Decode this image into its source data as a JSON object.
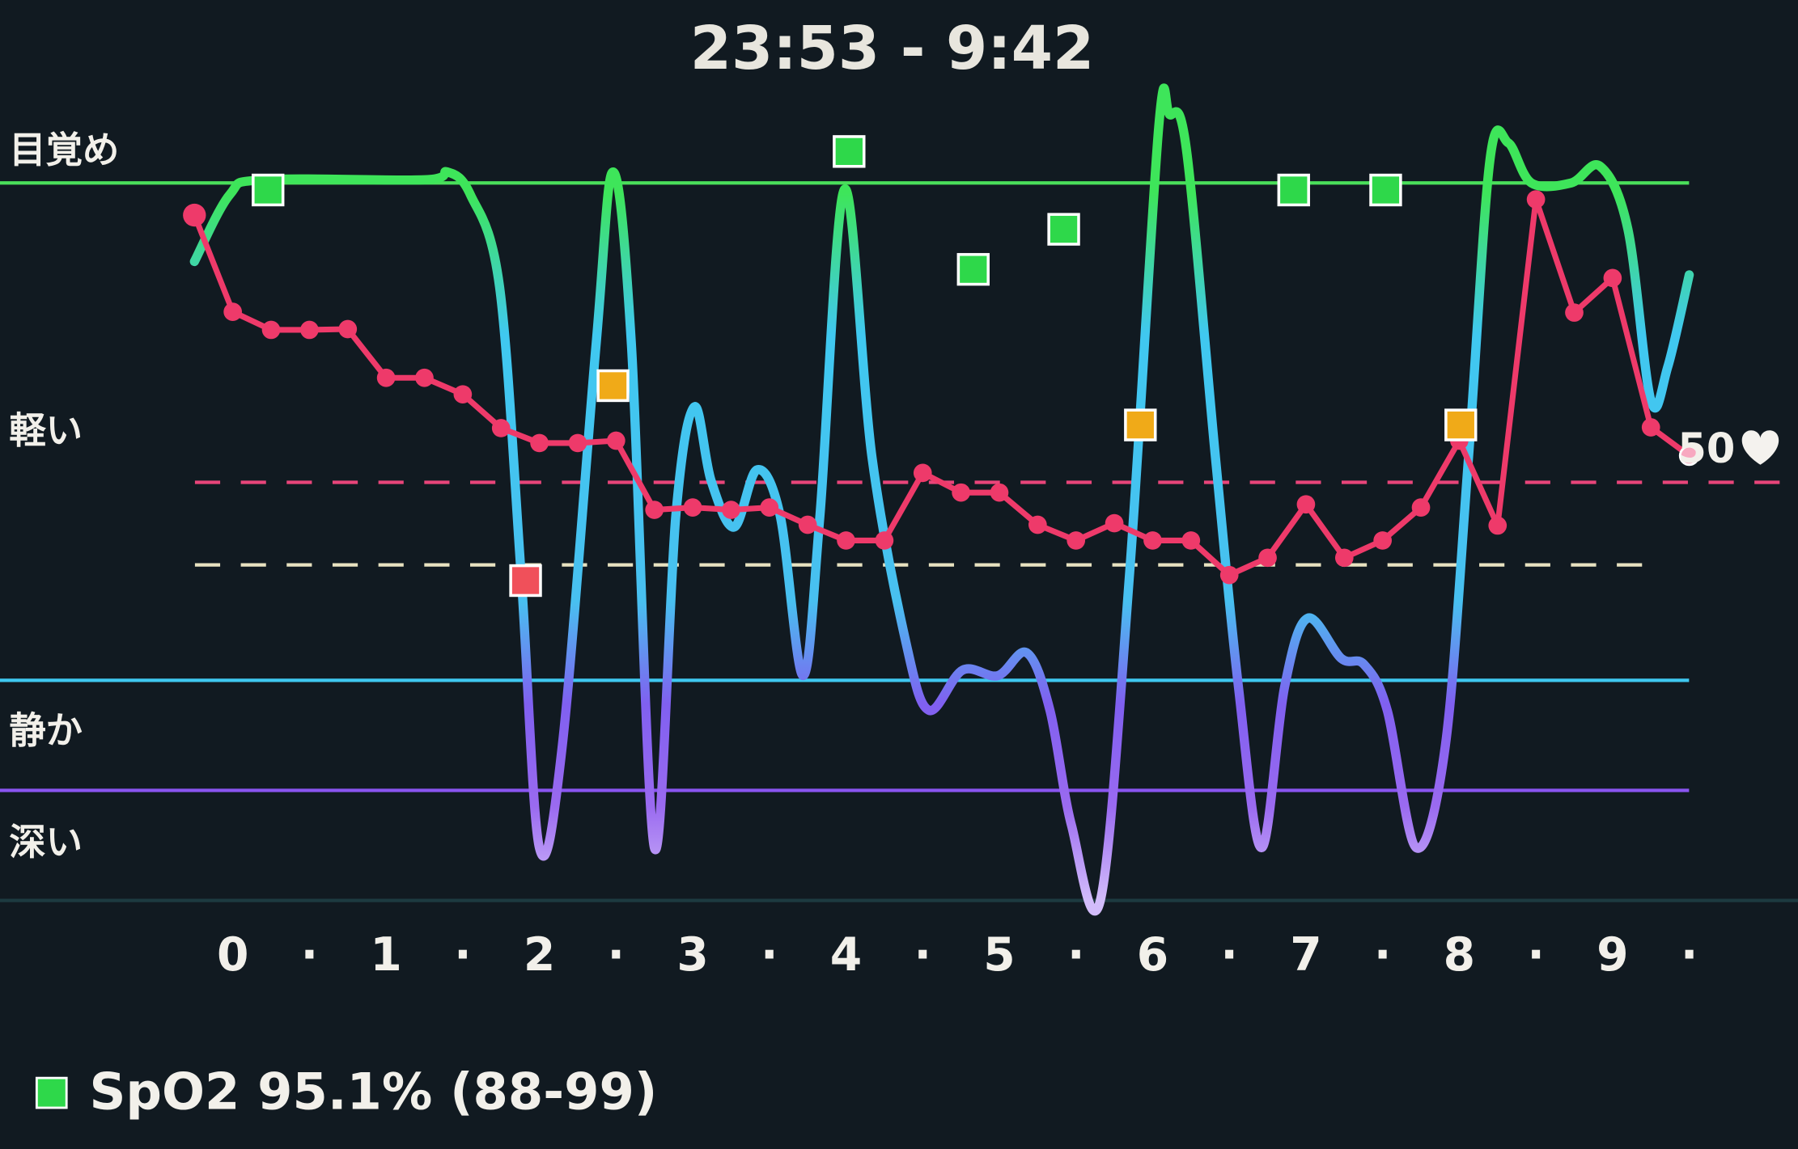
{
  "chart_data": {
    "type": "line",
    "title": "23:53 - 9:42",
    "xlim": [
      -0.25,
      9.5
    ],
    "ylim": [
      0,
      100
    ],
    "xticks": [
      0,
      {
        "value": 0.5,
        "label": "·"
      },
      1,
      {
        "value": 1.5,
        "label": "·"
      },
      2,
      {
        "value": 2.5,
        "label": "·"
      },
      3,
      {
        "value": 3.5,
        "label": "·"
      },
      4,
      {
        "value": 4.5,
        "label": "·"
      },
      5,
      {
        "value": 5.5,
        "label": "·"
      },
      6,
      {
        "value": 6.5,
        "label": "·"
      },
      7,
      {
        "value": 7.5,
        "label": "·"
      },
      8,
      {
        "value": 8.5,
        "label": "·"
      },
      9,
      {
        "value": 9.5,
        "label": "·"
      }
    ],
    "yticks": [
      {
        "value": 95.2,
        "label": "目覚め"
      },
      {
        "value": 59.5,
        "label": "軽い"
      },
      {
        "value": 21.3,
        "label": "静か"
      },
      {
        "value": 7.1,
        "label": "深い"
      }
    ],
    "reference_lines": [
      {
        "value": 91.3,
        "color": "#4ade5a",
        "dashed": false
      },
      {
        "value": 28,
        "color": "#3fc8f0",
        "dashed": false
      },
      {
        "value": 14,
        "color": "#8a55f0",
        "dashed": false
      },
      {
        "value": 0,
        "color": "#1d3a40",
        "dashed": false
      },
      {
        "value": 53.2,
        "color": "#e8457a",
        "dashed": true
      },
      {
        "value": 42.7,
        "color": "#e8e2c0",
        "dashed": true
      }
    ],
    "sleep_curve": {
      "x": [
        -0.25,
        -0.02,
        0.2,
        1.25,
        1.4,
        1.55,
        1.74,
        1.88,
        2.0,
        2.15,
        2.37,
        2.48,
        2.6,
        2.75,
        2.89,
        3.01,
        3.12,
        3.27,
        3.42,
        3.57,
        3.72,
        3.83,
        3.99,
        4.17,
        4.39,
        4.54,
        4.76,
        4.99,
        5.18,
        5.33,
        5.47,
        5.66,
        5.85,
        6.04,
        6.11,
        6.22,
        6.41,
        6.56,
        6.71,
        6.86,
        7.01,
        7.23,
        7.38,
        7.53,
        7.72,
        7.91,
        8.06,
        8.2,
        8.32,
        8.47,
        8.73,
        8.92,
        9.1,
        9.25,
        9.36,
        9.5
      ],
      "values": [
        81.3,
        89.8,
        91.7,
        91.7,
        92.7,
        89.8,
        78.1,
        41.7,
        6.7,
        19.8,
        70.8,
        92.7,
        70.8,
        6.7,
        49.0,
        62.8,
        53.4,
        47.5,
        54.8,
        49.0,
        28.6,
        49.0,
        90.5,
        56.3,
        32.9,
        24.2,
        29.3,
        28.6,
        31.5,
        24.2,
        9.6,
        0.1,
        41.7,
        98.5,
        100,
        95.6,
        56.3,
        27.1,
        6.7,
        27.1,
        35.9,
        30.8,
        30.0,
        24.2,
        6.7,
        19.8,
        56.3,
        94.2,
        96.4,
        91.3,
        91.3,
        93.4,
        85.4,
        63.6,
        67.9,
        79.6
      ]
    },
    "heart_rate": {
      "color": "#ee3a6a",
      "label": "50",
      "x": [
        -0.25,
        0,
        0.25,
        0.5,
        0.75,
        1,
        1.25,
        1.5,
        1.75,
        2,
        2.25,
        2.5,
        2.75,
        3,
        3.25,
        3.5,
        3.75,
        4,
        4.25,
        4.5,
        4.75,
        5,
        5.25,
        5.5,
        5.75,
        6,
        6.25,
        6.5,
        6.75,
        7,
        7.25,
        7.5,
        7.75,
        8,
        8.25,
        8.5,
        8.75,
        9,
        9.25,
        9.5
      ],
      "values": [
        87.2,
        74.9,
        72.6,
        72.6,
        72.7,
        66.5,
        66.5,
        64.4,
        60.1,
        58.2,
        58.2,
        58.5,
        49.7,
        50.0,
        49.7,
        50.0,
        47.8,
        45.8,
        45.8,
        54.4,
        51.9,
        51.9,
        47.8,
        45.8,
        48.0,
        45.8,
        45.8,
        41.4,
        43.6,
        50.4,
        43.6,
        45.8,
        50.0,
        58.5,
        47.7,
        89.2,
        74.8,
        79.2,
        60.2,
        56.6
      ]
    },
    "spo2": {
      "label": "SpO2 95.1% (88-99)",
      "legend_color": "#2ed84a",
      "x": [
        0.23,
        1.91,
        2.48,
        4.02,
        4.83,
        5.42,
        5.92,
        6.92,
        7.52,
        8.01
      ],
      "values": [
        90.4,
        40.7,
        65.5,
        95.3,
        80.3,
        85.4,
        60.5,
        90.4,
        90.4,
        60.5
      ],
      "colors": [
        "#2ed84a",
        "#f0505a",
        "#f0aa18",
        "#2ed84a",
        "#2ed84a",
        "#2ed84a",
        "#f0aa18",
        "#2ed84a",
        "#2ed84a",
        "#f0aa18"
      ]
    }
  }
}
